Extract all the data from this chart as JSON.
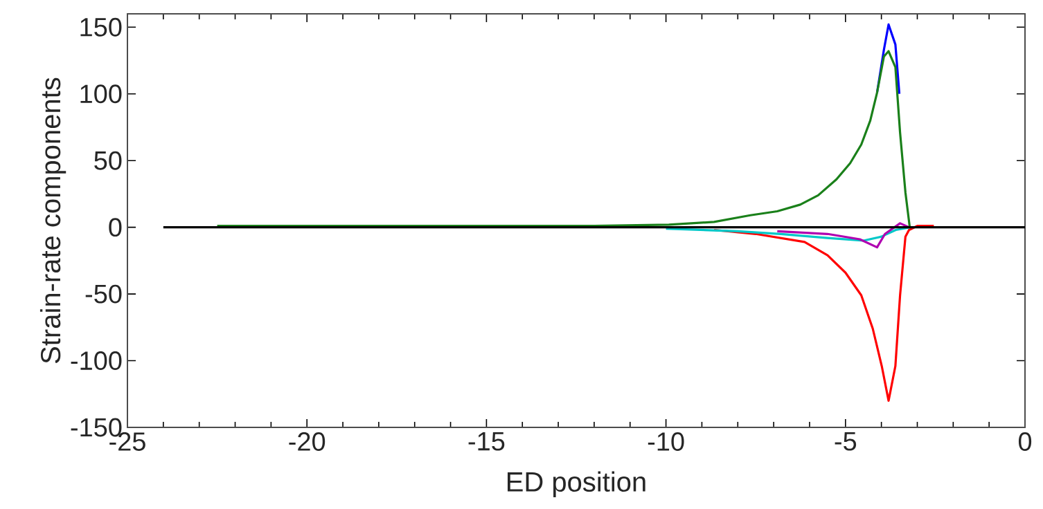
{
  "chart_data": {
    "type": "line",
    "xlabel": "ED position",
    "ylabel": "Strain-rate components",
    "xlim": [
      -25,
      0
    ],
    "ylim": [
      -150,
      160
    ],
    "xticks": [
      -25,
      -20,
      -15,
      -10,
      -5,
      0
    ],
    "yticks": [
      -150,
      -100,
      -50,
      0,
      50,
      100,
      150
    ],
    "marker": "none",
    "line_style": "solid",
    "series": [
      {
        "color": "#ff0000",
        "x": [
          -8.66,
          -7.5,
          -6.14,
          -5.5,
          -5.0,
          -4.56,
          -4.24,
          -3.99,
          -3.8,
          -3.61,
          -3.48,
          -3.33,
          -3.23,
          -3.0,
          -2.54
        ],
        "values": [
          -2,
          -5,
          -11,
          -21,
          -34,
          -51,
          -76,
          -104,
          -130,
          -104,
          -51,
          -7,
          -2,
          1,
          1
        ]
      },
      {
        "color": "#00c8c8",
        "x": [
          -10,
          -8,
          -6.8,
          -5.5,
          -4.5,
          -4.0,
          -3.6,
          -3.2
        ],
        "values": [
          -1,
          -3,
          -5,
          -8,
          -10,
          -7,
          -2,
          0
        ]
      },
      {
        "color": "#b000b0",
        "x": [
          -6.9,
          -5.5,
          -4.6,
          -4.12,
          -3.9,
          -3.48,
          -3.23
        ],
        "values": [
          -3,
          -5,
          -9,
          -15,
          -5,
          3,
          0
        ]
      },
      {
        "color": "#0000ff",
        "x": [
          -4.12,
          -3.93,
          -3.8,
          -3.61,
          -3.5
        ],
        "values": [
          101,
          133,
          152,
          137,
          100
        ]
      },
      {
        "color": "#1a801a",
        "x": [
          -22.5,
          -12,
          -9.92,
          -8.66,
          -7.65,
          -6.9,
          -6.26,
          -5.76,
          -5.25,
          -4.87,
          -4.56,
          -4.31,
          -4.12,
          -3.93,
          -3.8,
          -3.61,
          -3.48,
          -3.33,
          -3.21
        ],
        "values": [
          1,
          1,
          2,
          4,
          9,
          12,
          17,
          24,
          36,
          48,
          62,
          80,
          101,
          128,
          132,
          120,
          71,
          26,
          0
        ]
      },
      {
        "color": "#000000",
        "x": [
          -24,
          0
        ],
        "values": [
          0,
          0
        ]
      }
    ]
  }
}
